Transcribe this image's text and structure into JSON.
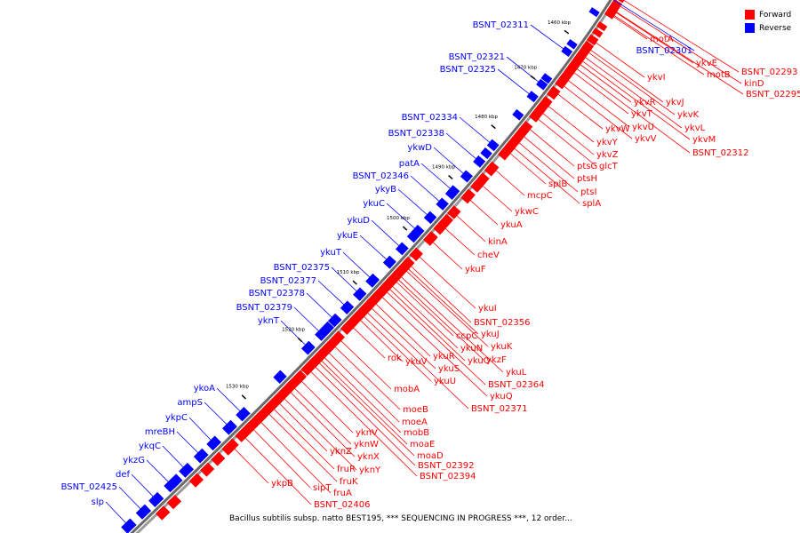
{
  "legend": {
    "forward_label": "Forward",
    "reverse_label": "Reverse",
    "forward_color": "#ff0000",
    "reverse_color": "#0000ff"
  },
  "caption": "Bacillus subtilis subsp. natto BEST195, *** SEQUENCING IN PROGRESS ***, 12 order...",
  "ticks": [
    "1450 kbp",
    "1460 kbp",
    "1470 kbp",
    "1480 kbp",
    "1490 kbp",
    "1500 kbp",
    "1510 kbp",
    "1520 kbp",
    "1530 kbp"
  ],
  "forward_genes": [
    "BSNT_02293",
    "motB",
    "motA",
    "ykvE",
    "kinD",
    "BSNT_02295",
    "ykvI",
    "ykvJ",
    "ykvR",
    "ykvK",
    "ykvT",
    "ykvL",
    "ykvU",
    "ykvM",
    "ykvV",
    "BSNT_02312",
    "ykvW",
    "ykvY",
    "ykvZ",
    "ptsG",
    "glcT",
    "ptsH",
    "ptsI",
    "splB",
    "mcpC",
    "splA",
    "ykwC",
    "ykuA",
    "kinA",
    "cheV",
    "ykuF",
    "ykuI",
    "BSNT_02356",
    "ccpC",
    "ykuJ",
    "ykuN",
    "ykuK",
    "ykzF",
    "ykuO",
    "ykuR",
    "ykuV",
    "rok",
    "ykuS",
    "ykuL",
    "ykuU",
    "BSNT_02364",
    "ykuQ",
    "BSNT_02371",
    "mobA",
    "moeB",
    "moeA",
    "mobB",
    "moaE",
    "moaD",
    "BSNT_02392",
    "BSNT_02394",
    "ykvN",
    "ykvW_",
    "ykuX",
    "ykuZ",
    "ykuY",
    "fruR",
    "fruK",
    "fruA",
    "sipT",
    "ykpB",
    "BSNT_02406"
  ],
  "reverse_genes": [
    "BSNT_02311",
    "BSNT_02301",
    "BSNT_02321",
    "BSNT_02325",
    "BSNT_02334",
    "BSNT_02338",
    "ykwD",
    "patA",
    "BSNT_02346",
    "ykyB",
    "ykuC",
    "ykuD",
    "ykuE",
    "ykuT",
    "BSNT_02375",
    "BSNT_02377",
    "BSNT_02378",
    "BSNT_02379",
    "yknT",
    "ykoA",
    "ampS",
    "ykpC",
    "mreBH",
    "ykqC",
    "ykzG",
    "def",
    "BSNT_02425",
    "slp"
  ]
}
